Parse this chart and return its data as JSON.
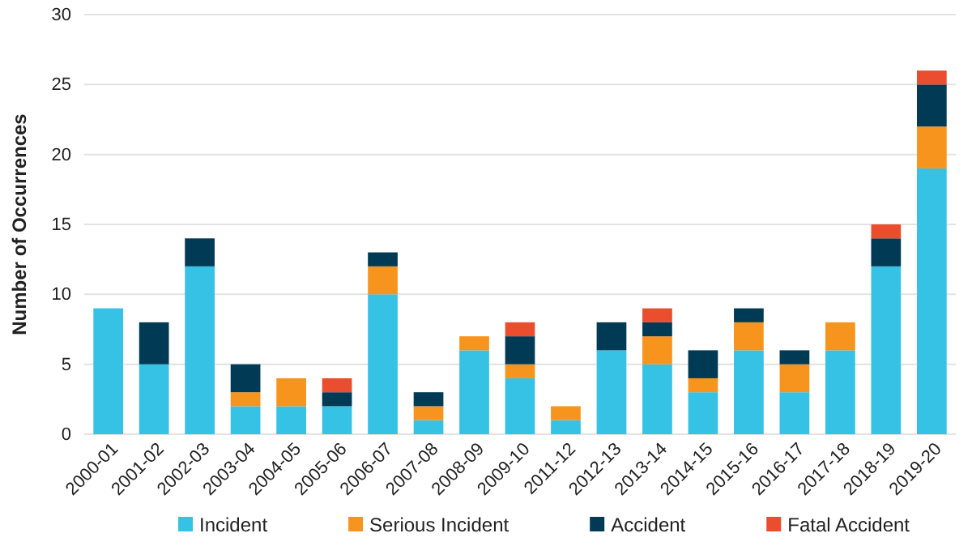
{
  "chart_data": {
    "type": "bar",
    "stacked": true,
    "ylabel": "Number of Occurrences",
    "categories": [
      "2000-01",
      "2001-02",
      "2002-03",
      "2003-04",
      "2004-05",
      "2005-06",
      "2006-07",
      "2007-08",
      "2008-09",
      "2009-10",
      "2011-12",
      "2012-13",
      "2013-14",
      "2014-15",
      "2015-16",
      "2016-17",
      "2017-18",
      "2018-19",
      "2019-20"
    ],
    "series": [
      {
        "name": "Incident",
        "color": "#35c2e4",
        "values": [
          9,
          5,
          12,
          2,
          2,
          2,
          10,
          1,
          6,
          4,
          1,
          6,
          5,
          3,
          6,
          3,
          6,
          12,
          19
        ]
      },
      {
        "name": "Serious Incident",
        "color": "#f7941d",
        "values": [
          0,
          0,
          0,
          1,
          2,
          0,
          2,
          1,
          1,
          1,
          1,
          0,
          2,
          1,
          2,
          2,
          2,
          0,
          3
        ]
      },
      {
        "name": "Accident",
        "color": "#003a55",
        "values": [
          0,
          3,
          2,
          2,
          0,
          1,
          1,
          1,
          0,
          2,
          0,
          2,
          1,
          2,
          1,
          1,
          0,
          2,
          3
        ]
      },
      {
        "name": "Fatal Accident",
        "color": "#ea4e2f",
        "values": [
          0,
          0,
          0,
          0,
          0,
          1,
          0,
          0,
          0,
          1,
          0,
          0,
          1,
          0,
          0,
          0,
          0,
          1,
          1
        ]
      }
    ],
    "ylim": [
      0,
      30
    ],
    "yticks": [
      0,
      5,
      10,
      15,
      20,
      25,
      30
    ],
    "grid": "y",
    "legend": "bottom"
  }
}
